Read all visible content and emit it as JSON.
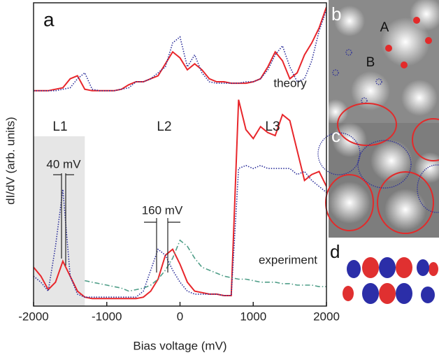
{
  "chart_data": {
    "type": "line",
    "xlabel": "Bias voltage (mV)",
    "ylabel": "dI/dV (arb. units)",
    "xlim": [
      -2000,
      2000
    ],
    "xticks": [
      -2000,
      -1000,
      0,
      1000,
      2000
    ],
    "ylim": [
      0,
      100
    ],
    "shade": [
      -2000,
      -1300
    ],
    "annotations": [
      "a",
      "theory",
      "experiment",
      "L1",
      "L2",
      "L3",
      "40 mV",
      "160 mV",
      "b",
      "A",
      "B",
      "c",
      "d"
    ],
    "x": [
      -2000,
      -1900,
      -1800,
      -1700,
      -1600,
      -1500,
      -1400,
      -1300,
      -1200,
      -1100,
      -1000,
      -900,
      -800,
      -700,
      -600,
      -500,
      -400,
      -300,
      -200,
      -100,
      0,
      100,
      200,
      300,
      400,
      500,
      600,
      700,
      800,
      900,
      1000,
      1100,
      1200,
      1300,
      1400,
      1500,
      1600,
      1700,
      1800,
      1900,
      2000
    ],
    "series": [
      {
        "color": "#e8262b",
        "dash": "solid",
        "values": [
          72,
          72,
          72,
          72.5,
          73,
          76,
          77,
          72.5,
          72,
          72,
          72,
          72,
          72.5,
          74,
          75,
          75,
          76,
          77,
          81,
          85,
          83,
          79,
          81,
          79,
          76,
          75,
          75,
          74.5,
          74.5,
          74.5,
          75,
          76,
          80,
          85,
          82,
          76,
          78,
          84,
          88,
          93,
          100
        ]
      },
      {
        "color": "#2b2e9a",
        "dash": "dotted",
        "values": [
          72,
          72,
          72,
          72,
          72.5,
          73,
          76,
          78,
          72.5,
          72,
          72,
          72,
          72.5,
          73,
          75,
          75,
          76,
          78,
          80,
          88,
          90,
          80,
          84,
          78,
          75,
          74.5,
          74.5,
          74.5,
          74.5,
          75,
          75,
          76,
          79,
          84,
          87,
          80,
          75,
          76,
          82,
          92,
          99
        ]
      },
      {
        "color": "#e8262b",
        "dash": "solid",
        "values": [
          13,
          10,
          5.5,
          8,
          15,
          10,
          5,
          3,
          2.5,
          2.5,
          2.5,
          2.5,
          2.5,
          2.5,
          2.5,
          3,
          5,
          9,
          17,
          19,
          14,
          8,
          5,
          4.5,
          4,
          4,
          3.5,
          3.5,
          69,
          59,
          56,
          60,
          58,
          57,
          64,
          62,
          52,
          42,
          44,
          45,
          40
        ]
      },
      {
        "color": "#2b2e9a",
        "dash": "dotted",
        "values": [
          10,
          8,
          5,
          20,
          39,
          10,
          4,
          3,
          3,
          3,
          3,
          3,
          3,
          3,
          3,
          5,
          12,
          19,
          17,
          12,
          8,
          5,
          4,
          4,
          4,
          4,
          3.5,
          3.5,
          46,
          47,
          46,
          47,
          46,
          46,
          46,
          46,
          44,
          45,
          42,
          40,
          38
        ]
      },
      {
        "color": "#4f9e88",
        "dash": "dashdot",
        "values": [
          null,
          null,
          null,
          null,
          null,
          null,
          null,
          8.5,
          8,
          7.5,
          7,
          6.5,
          6,
          5,
          5.5,
          6,
          7,
          9,
          12,
          16,
          22,
          20,
          16,
          13,
          12,
          11,
          10,
          9.5,
          9,
          9,
          8.5,
          8,
          8,
          8,
          7.5,
          7.5,
          7,
          7,
          7,
          6.5,
          6.5
        ]
      }
    ]
  }
}
